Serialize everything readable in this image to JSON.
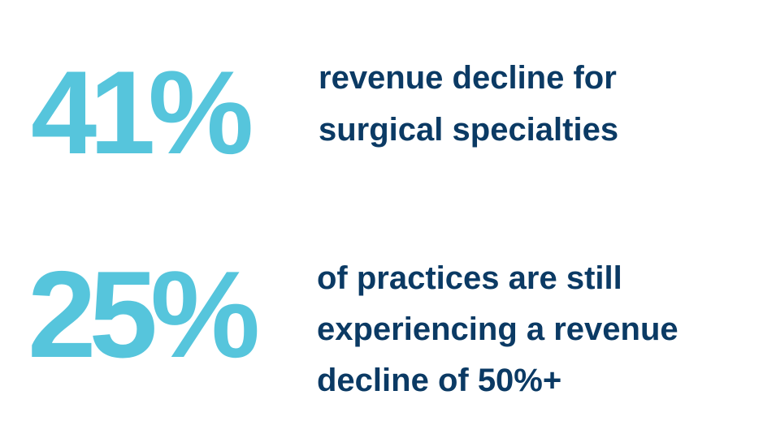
{
  "stats": [
    {
      "value": "41%",
      "description_lines": [
        "revenue decline for",
        "surgical specialties"
      ]
    },
    {
      "value": "25%",
      "description_lines": [
        "of practices are still",
        "experiencing a revenue",
        "decline of 50%+"
      ]
    }
  ]
}
